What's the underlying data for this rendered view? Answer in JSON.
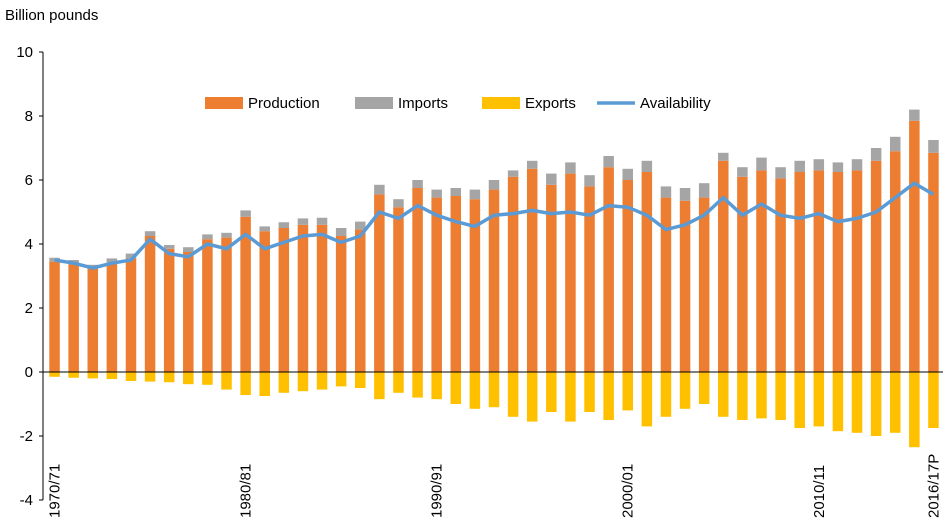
{
  "chart_data": {
    "type": "stacked-bar-line",
    "y_axis_label": "Billion pounds",
    "categories": [
      "1970/71",
      null,
      null,
      null,
      null,
      null,
      null,
      null,
      null,
      null,
      "1980/81",
      null,
      null,
      null,
      null,
      null,
      null,
      null,
      null,
      null,
      "1990/91",
      null,
      null,
      null,
      null,
      null,
      null,
      null,
      null,
      null,
      "2000/01",
      null,
      null,
      null,
      null,
      null,
      null,
      null,
      null,
      null,
      "2010/11",
      null,
      null,
      null,
      null,
      null,
      "2016/17P"
    ],
    "series": [
      {
        "name": "Production",
        "color": "#ED7D31",
        "kind": "bar",
        "values": [
          3.45,
          3.4,
          3.25,
          3.4,
          3.55,
          4.25,
          3.85,
          3.75,
          4.15,
          4.2,
          4.85,
          4.4,
          4.5,
          4.6,
          4.6,
          4.25,
          4.45,
          5.55,
          5.15,
          5.75,
          5.45,
          5.5,
          5.4,
          5.7,
          6.1,
          6.35,
          5.85,
          6.2,
          5.8,
          6.4,
          6.0,
          6.25,
          5.45,
          5.35,
          5.45,
          6.6,
          6.1,
          6.3,
          6.05,
          6.25,
          6.3,
          6.25,
          6.3,
          6.6,
          6.9,
          7.85,
          6.85
        ]
      },
      {
        "name": "Imports",
        "color": "#A5A5A5",
        "kind": "bar",
        "values": [
          0.12,
          0.1,
          0.1,
          0.15,
          0.15,
          0.15,
          0.12,
          0.15,
          0.15,
          0.15,
          0.2,
          0.15,
          0.18,
          0.2,
          0.22,
          0.25,
          0.25,
          0.3,
          0.25,
          0.25,
          0.25,
          0.25,
          0.3,
          0.3,
          0.2,
          0.25,
          0.35,
          0.35,
          0.35,
          0.35,
          0.35,
          0.35,
          0.35,
          0.4,
          0.45,
          0.25,
          0.3,
          0.4,
          0.35,
          0.35,
          0.35,
          0.3,
          0.35,
          0.4,
          0.45,
          0.35,
          0.4
        ]
      },
      {
        "name": "Exports",
        "color": "#FFC000",
        "kind": "bar",
        "values": [
          -0.15,
          -0.18,
          -0.2,
          -0.22,
          -0.28,
          -0.3,
          -0.32,
          -0.38,
          -0.4,
          -0.55,
          -0.72,
          -0.75,
          -0.65,
          -0.6,
          -0.55,
          -0.45,
          -0.5,
          -0.85,
          -0.65,
          -0.8,
          -0.85,
          -1.0,
          -1.15,
          -1.1,
          -1.4,
          -1.55,
          -1.25,
          -1.55,
          -1.25,
          -1.5,
          -1.2,
          -1.7,
          -1.4,
          -1.15,
          -1.0,
          -1.4,
          -1.5,
          -1.45,
          -1.5,
          -1.75,
          -1.7,
          -1.85,
          -1.9,
          -2.0,
          -1.9,
          -2.35,
          -1.75
        ]
      },
      {
        "name": "Availability",
        "color": "#5B9BD5",
        "kind": "line",
        "values": [
          3.5,
          3.4,
          3.25,
          3.4,
          3.5,
          4.15,
          3.7,
          3.6,
          4.0,
          3.85,
          4.3,
          3.85,
          4.05,
          4.25,
          4.3,
          4.05,
          4.25,
          5.0,
          4.8,
          5.2,
          4.9,
          4.7,
          4.55,
          4.9,
          4.95,
          5.05,
          4.95,
          5.0,
          4.9,
          5.2,
          5.15,
          4.9,
          4.45,
          4.6,
          4.9,
          5.45,
          4.9,
          5.25,
          4.9,
          4.8,
          4.95,
          4.7,
          4.8,
          5.0,
          5.45,
          5.9,
          5.55
        ]
      }
    ],
    "ylim": [
      -4,
      10
    ],
    "yticks": [
      -4,
      -2,
      0,
      2,
      4,
      6,
      8,
      10
    ],
    "grid": false,
    "legend": "top"
  }
}
